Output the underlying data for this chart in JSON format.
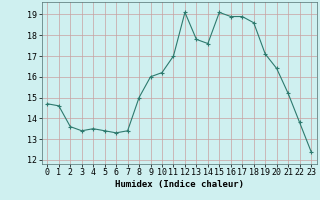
{
  "x": [
    0,
    1,
    2,
    3,
    4,
    5,
    6,
    7,
    8,
    9,
    10,
    11,
    12,
    13,
    14,
    15,
    16,
    17,
    18,
    19,
    20,
    21,
    22,
    23
  ],
  "y": [
    14.7,
    14.6,
    13.6,
    13.4,
    13.5,
    13.4,
    13.3,
    13.4,
    15.0,
    16.0,
    16.2,
    17.0,
    19.1,
    17.8,
    17.6,
    19.1,
    18.9,
    18.9,
    18.6,
    17.1,
    16.4,
    15.2,
    13.8,
    12.4
  ],
  "line_color": "#2d7a6e",
  "marker": "+",
  "marker_size": 3,
  "bg_color": "#cff0f0",
  "grid_color_major": "#c8a0a0",
  "grid_color_minor": "#c8a0a0",
  "xlabel": "Humidex (Indice chaleur)",
  "ylim": [
    11.8,
    19.6
  ],
  "xlim": [
    -0.5,
    23.5
  ],
  "yticks": [
    12,
    13,
    14,
    15,
    16,
    17,
    18,
    19
  ],
  "xticks": [
    0,
    1,
    2,
    3,
    4,
    5,
    6,
    7,
    8,
    9,
    10,
    11,
    12,
    13,
    14,
    15,
    16,
    17,
    18,
    19,
    20,
    21,
    22,
    23
  ],
  "label_fontsize": 6.5,
  "tick_fontsize": 6
}
